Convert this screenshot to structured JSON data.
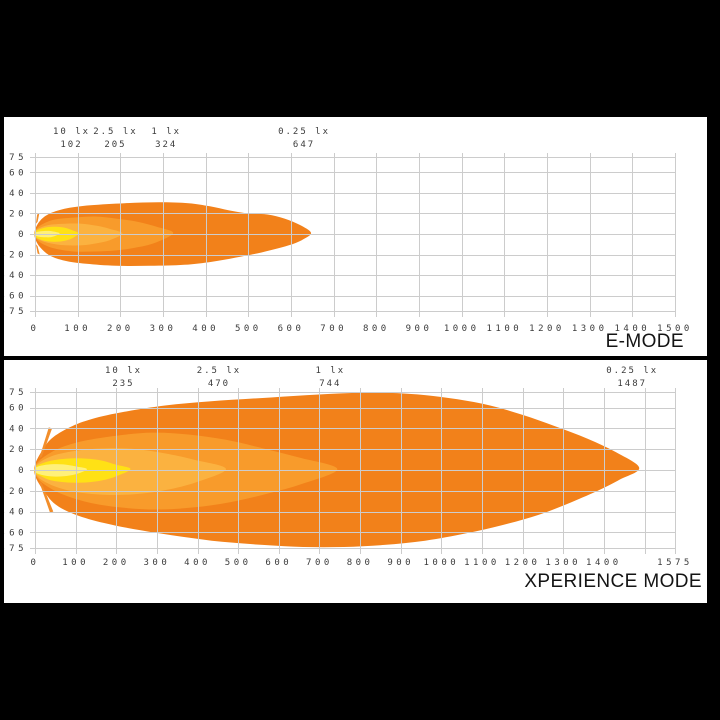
{
  "page": {
    "background": "#000000",
    "panel_background": "#ffffff"
  },
  "styles": {
    "grid_color": "#cccccc",
    "axis_text_color": "#3c3c3c",
    "title_color": "#141414"
  },
  "chart_data": [
    {
      "type": "area",
      "title": "E-MODE",
      "x_axis": {
        "max": 1500,
        "grid_values": [
          0,
          100,
          200,
          300,
          400,
          500,
          600,
          700,
          800,
          900,
          1000,
          1100,
          1200,
          1300,
          1400,
          1500
        ],
        "tick_values": [
          0,
          100,
          200,
          300,
          400,
          500,
          600,
          700,
          800,
          900,
          1000,
          1100,
          1200,
          1300,
          1400,
          1500
        ],
        "tick_labels": [
          "0",
          "100",
          "200",
          "300",
          "400",
          "500",
          "600",
          "700",
          "800",
          "900",
          "1000",
          "1100",
          "1200",
          "1300",
          "1400",
          "1500"
        ]
      },
      "y_axis": {
        "min": -75,
        "max": 75,
        "tick_values": [
          75,
          60,
          40,
          20,
          0,
          -20,
          -40,
          -60,
          -75
        ],
        "tick_labels": [
          "75",
          "60",
          "40",
          "20",
          "0",
          "-20",
          "-40",
          "-60",
          "-75"
        ]
      },
      "iso_lux_markers": [
        {
          "lux": "10 lx",
          "distance_label": "102",
          "distance_m": 102
        },
        {
          "lux": "2.5 lx",
          "distance_label": "205",
          "distance_m": 205
        },
        {
          "lux": "1 lx",
          "distance_label": "324",
          "distance_m": 324
        },
        {
          "lux": "0.25 lx",
          "distance_label": "647",
          "distance_m": 647
        }
      ],
      "spike_color": "#F28E2B",
      "flare_spikes": [
        [
          [
            2,
            10
          ],
          [
            6,
            12
          ],
          [
            10,
            20
          ],
          [
            5,
            19
          ]
        ],
        [
          [
            2,
            -10
          ],
          [
            6,
            -12
          ],
          [
            11,
            -20
          ],
          [
            6,
            -19
          ]
        ]
      ],
      "contours": [
        {
          "lux": "0.25 lx",
          "max_distance_m": 647,
          "color": "#F2811A",
          "outline": [
            [
              0,
              4
            ],
            [
              12,
              13
            ],
            [
              35,
              20
            ],
            [
              75,
              25
            ],
            [
              130,
              28
            ],
            [
              210,
              30
            ],
            [
              290,
              31
            ],
            [
              360,
              30
            ],
            [
              410,
              27
            ],
            [
              455,
              23
            ],
            [
              500,
              20
            ],
            [
              545,
              19
            ],
            [
              585,
              15
            ],
            [
              620,
              9
            ],
            [
              647,
              1
            ],
            [
              625,
              -6
            ],
            [
              595,
              -11
            ],
            [
              560,
              -15
            ],
            [
              520,
              -19
            ],
            [
              470,
              -23
            ],
            [
              415,
              -27
            ],
            [
              350,
              -30
            ],
            [
              270,
              -31
            ],
            [
              190,
              -31
            ],
            [
              120,
              -29
            ],
            [
              70,
              -26
            ],
            [
              35,
              -21
            ],
            [
              12,
              -13
            ],
            [
              0,
              -4
            ]
          ]
        },
        {
          "lux": "1 lx",
          "max_distance_m": 324,
          "color": "#F89B2B",
          "outline": [
            [
              0,
              3
            ],
            [
              15,
              9
            ],
            [
              45,
              14
            ],
            [
              90,
              16
            ],
            [
              140,
              17
            ],
            [
              190,
              15
            ],
            [
              240,
              12
            ],
            [
              285,
              7
            ],
            [
              324,
              1
            ],
            [
              285,
              -8
            ],
            [
              240,
              -13
            ],
            [
              190,
              -16
            ],
            [
              140,
              -17
            ],
            [
              90,
              -17
            ],
            [
              45,
              -14
            ],
            [
              15,
              -9
            ],
            [
              0,
              -3
            ]
          ]
        },
        {
          "lux": "2.5 lx",
          "max_distance_m": 205,
          "color": "#FBB240",
          "outline": [
            [
              0,
              2.5
            ],
            [
              12,
              6
            ],
            [
              35,
              9
            ],
            [
              70,
              10
            ],
            [
              110,
              10
            ],
            [
              145,
              8
            ],
            [
              175,
              5
            ],
            [
              205,
              0.5
            ],
            [
              175,
              -6
            ],
            [
              145,
              -9
            ],
            [
              110,
              -11
            ],
            [
              70,
              -11
            ],
            [
              35,
              -9
            ],
            [
              12,
              -6
            ],
            [
              0,
              -2.5
            ]
          ]
        },
        {
          "lux": "10 lx",
          "max_distance_m": 102,
          "color": "#FFE115",
          "outline": [
            [
              0,
              2
            ],
            [
              10,
              4.5
            ],
            [
              28,
              6.5
            ],
            [
              50,
              7
            ],
            [
              70,
              6
            ],
            [
              88,
              3.5
            ],
            [
              102,
              0.5
            ],
            [
              88,
              -4
            ],
            [
              70,
              -6.5
            ],
            [
              50,
              -7.5
            ],
            [
              28,
              -7
            ],
            [
              10,
              -5
            ],
            [
              0,
              -2
            ]
          ]
        },
        {
          "lux": "hotspot",
          "max_distance_m": 58,
          "color": "#FFF07A",
          "outline": [
            [
              0,
              1.2
            ],
            [
              10,
              2.4
            ],
            [
              25,
              3
            ],
            [
              40,
              2.6
            ],
            [
              58,
              0.5
            ],
            [
              40,
              -2.8
            ],
            [
              25,
              -3.2
            ],
            [
              10,
              -2.6
            ],
            [
              0,
              -1.2
            ]
          ]
        }
      ]
    },
    {
      "type": "area",
      "title": "XPERIENCE MODE",
      "x_axis": {
        "max": 1575,
        "grid_values": [
          0,
          100,
          200,
          300,
          400,
          500,
          600,
          700,
          800,
          900,
          1000,
          1100,
          1200,
          1300,
          1400,
          1500,
          1575
        ],
        "tick_values": [
          0,
          100,
          200,
          300,
          400,
          500,
          600,
          700,
          800,
          900,
          1000,
          1100,
          1200,
          1300,
          1400,
          1575
        ],
        "tick_labels": [
          "0",
          "100",
          "200",
          "300",
          "400",
          "500",
          "600",
          "700",
          "800",
          "900",
          "1000",
          "1100",
          "1200",
          "1300",
          "1400",
          "1575"
        ]
      },
      "y_axis": {
        "min": -75,
        "max": 75,
        "tick_values": [
          75,
          60,
          40,
          20,
          0,
          -20,
          -40,
          -60,
          -75
        ],
        "tick_labels": [
          "75",
          "60",
          "40",
          "20",
          "0",
          "-20",
          "-40",
          "-60",
          "-75"
        ]
      },
      "iso_lux_markers": [
        {
          "lux": "10 lx",
          "distance_label": "235",
          "distance_m": 235
        },
        {
          "lux": "2.5 lx",
          "distance_label": "470",
          "distance_m": 470
        },
        {
          "lux": "1 lx",
          "distance_label": "744",
          "distance_m": 744
        },
        {
          "lux": "0.25 lx",
          "distance_label": "1487",
          "distance_m": 1487
        }
      ],
      "spike_color": "#F28E2B",
      "flare_spikes": [
        [
          [
            10,
            11
          ],
          [
            17,
            13
          ],
          [
            42,
            40
          ],
          [
            34,
            41
          ]
        ],
        [
          [
            10,
            -11
          ],
          [
            17,
            -13
          ],
          [
            45,
            -40
          ],
          [
            37,
            -41
          ]
        ]
      ],
      "contours": [
        {
          "lux": "0.25 lx",
          "max_distance_m": 1487,
          "color": "#F2811A",
          "outline": [
            [
              0,
              5
            ],
            [
              15,
              17
            ],
            [
              40,
              30
            ],
            [
              85,
              41
            ],
            [
              140,
              49
            ],
            [
              220,
              56
            ],
            [
              320,
              62
            ],
            [
              430,
              66
            ],
            [
              550,
              69
            ],
            [
              670,
              72
            ],
            [
              780,
              74
            ],
            [
              880,
              74
            ],
            [
              960,
              72
            ],
            [
              1040,
              68
            ],
            [
              1120,
              62
            ],
            [
              1200,
              53
            ],
            [
              1280,
              42
            ],
            [
              1360,
              30
            ],
            [
              1430,
              17
            ],
            [
              1487,
              2
            ],
            [
              1440,
              -9
            ],
            [
              1390,
              -19
            ],
            [
              1320,
              -31
            ],
            [
              1240,
              -43
            ],
            [
              1150,
              -53
            ],
            [
              1060,
              -61
            ],
            [
              960,
              -68
            ],
            [
              860,
              -72
            ],
            [
              760,
              -74
            ],
            [
              660,
              -74
            ],
            [
              560,
              -72
            ],
            [
              460,
              -69
            ],
            [
              360,
              -64
            ],
            [
              260,
              -58
            ],
            [
              170,
              -51
            ],
            [
              100,
              -43
            ],
            [
              50,
              -33
            ],
            [
              18,
              -18
            ],
            [
              0,
              -5
            ]
          ]
        },
        {
          "lux": "1 lx",
          "max_distance_m": 744,
          "color": "#F89B2B",
          "outline": [
            [
              0,
              4
            ],
            [
              20,
              12
            ],
            [
              60,
              21
            ],
            [
              120,
              28
            ],
            [
              200,
              33
            ],
            [
              290,
              36
            ],
            [
              380,
              34
            ],
            [
              470,
              29
            ],
            [
              560,
              21
            ],
            [
              650,
              12
            ],
            [
              744,
              1
            ],
            [
              660,
              -13
            ],
            [
              570,
              -23
            ],
            [
              480,
              -31
            ],
            [
              390,
              -36
            ],
            [
              300,
              -38
            ],
            [
              210,
              -36
            ],
            [
              130,
              -31
            ],
            [
              65,
              -23
            ],
            [
              20,
              -13
            ],
            [
              0,
              -4
            ]
          ]
        },
        {
          "lux": "2.5 lx",
          "max_distance_m": 470,
          "color": "#FBB240",
          "outline": [
            [
              0,
              3
            ],
            [
              18,
              9
            ],
            [
              55,
              15
            ],
            [
              110,
              19
            ],
            [
              180,
              21
            ],
            [
              250,
              20
            ],
            [
              320,
              16
            ],
            [
              390,
              10
            ],
            [
              470,
              1
            ],
            [
              395,
              -12
            ],
            [
              325,
              -19
            ],
            [
              255,
              -23
            ],
            [
              185,
              -24
            ],
            [
              115,
              -22
            ],
            [
              58,
              -17
            ],
            [
              18,
              -10
            ],
            [
              0,
              -3
            ]
          ]
        },
        {
          "lux": "10 lx",
          "max_distance_m": 235,
          "color": "#FFE115",
          "outline": [
            [
              0,
              2.5
            ],
            [
              15,
              6
            ],
            [
              40,
              9
            ],
            [
              80,
              11
            ],
            [
              125,
              11
            ],
            [
              165,
              9
            ],
            [
              200,
              5
            ],
            [
              235,
              1
            ],
            [
              200,
              -6
            ],
            [
              165,
              -10
            ],
            [
              125,
              -12
            ],
            [
              80,
              -12
            ],
            [
              40,
              -10
            ],
            [
              15,
              -6
            ],
            [
              0,
              -2.5
            ]
          ]
        },
        {
          "lux": "hotspot",
          "max_distance_m": 128,
          "color": "#FFF07A",
          "outline": [
            [
              0,
              1.8
            ],
            [
              15,
              4.2
            ],
            [
              40,
              5.6
            ],
            [
              70,
              5.4
            ],
            [
              100,
              3.5
            ],
            [
              128,
              0.8
            ],
            [
              100,
              -4
            ],
            [
              70,
              -6
            ],
            [
              40,
              -6.2
            ],
            [
              15,
              -4.6
            ],
            [
              0,
              -1.8
            ]
          ]
        }
      ]
    }
  ]
}
